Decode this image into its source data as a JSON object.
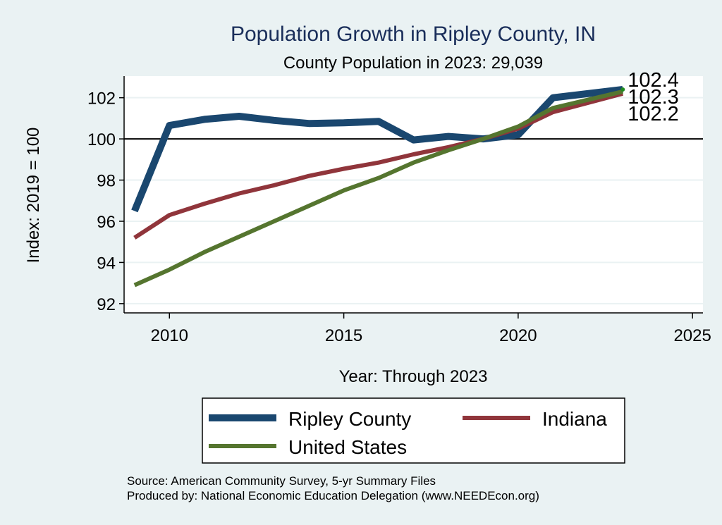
{
  "chart_data": {
    "type": "line",
    "title": "Population Growth in Ripley County, IN",
    "subtitle": "County Population in 2023: 29,039",
    "xlabel": "Year: Through 2023",
    "ylabel": "Index: 2019 = 100",
    "xlim": [
      2008.7,
      2025.3
    ],
    "ylim": [
      91.55,
      103.05
    ],
    "xticks": [
      2010,
      2015,
      2020,
      2025
    ],
    "yticks": [
      92,
      94,
      96,
      98,
      100,
      102
    ],
    "reference_line": 100,
    "grid": true,
    "x": [
      2009,
      2010,
      2011,
      2012,
      2013,
      2014,
      2015,
      2016,
      2017,
      2018,
      2019,
      2020,
      2021,
      2023
    ],
    "series": [
      {
        "name": "Ripley  County",
        "color": "#1a476f",
        "values": [
          96.5,
          100.65,
          100.95,
          101.1,
          100.9,
          100.75,
          100.78,
          100.85,
          99.95,
          100.12,
          100.0,
          100.2,
          102.0,
          102.4
        ],
        "end_label": "102.4"
      },
      {
        "name": "Indiana",
        "color": "#90353b",
        "values": [
          95.2,
          96.3,
          96.85,
          97.35,
          97.75,
          98.2,
          98.55,
          98.85,
          99.25,
          99.6,
          100.0,
          100.5,
          101.3,
          102.2
        ],
        "end_label": "102.2"
      },
      {
        "name": "United States",
        "color": "#55752f",
        "values": [
          92.9,
          93.65,
          94.5,
          95.25,
          96.0,
          96.75,
          97.5,
          98.1,
          98.85,
          99.45,
          100.0,
          100.6,
          101.5,
          102.3
        ],
        "end_label": "102.3"
      }
    ],
    "legend": {
      "placement": "bottom",
      "entries": [
        "Ripley  County",
        "Indiana",
        "United States"
      ]
    },
    "notes": [
      "Source: American Community Survey, 5-yr Summary Files",
      "Produced by: National Economic Education Delegation (www.NEEDEcon.org)"
    ]
  }
}
